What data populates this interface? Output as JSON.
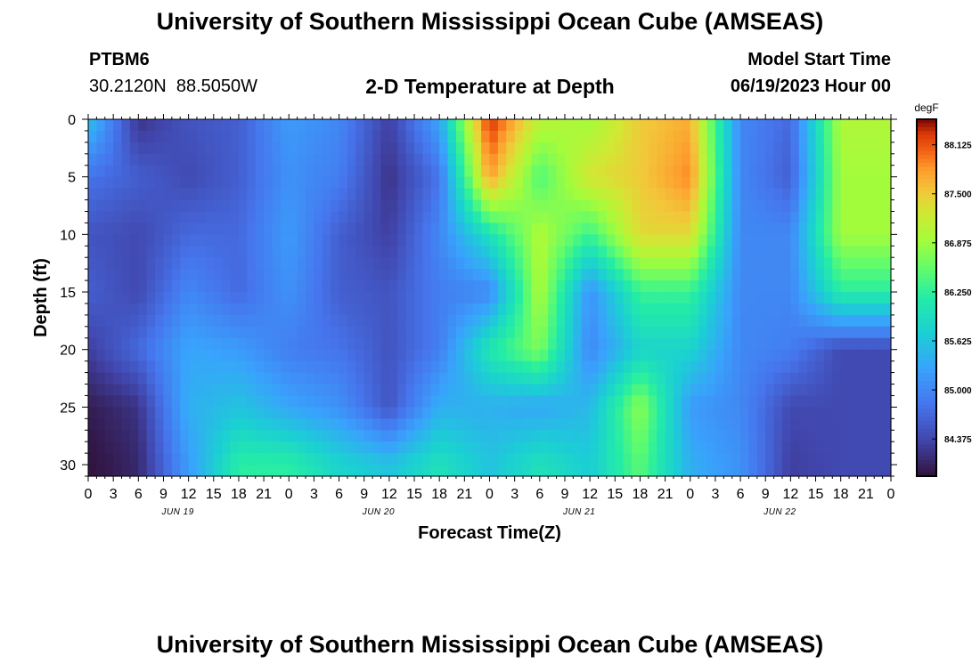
{
  "header": {
    "title": "University of Southern Mississippi Ocean Cube (AMSEAS)",
    "station": "PTBM6",
    "coords": "30.2120N  88.5050W",
    "subtitle": "2-D Temperature at Depth",
    "model_label": "Model Start Time",
    "model_time": "06/19/2023 Hour 00"
  },
  "footer": {
    "title_repeat": "University of Southern Mississippi Ocean Cube (AMSEAS)"
  },
  "chart_data": {
    "type": "heatmap",
    "title": "2-D Temperature at Depth",
    "xlabel": "Forecast Time(Z)",
    "ylabel": "Depth (ft)",
    "xlim": [
      0,
      96
    ],
    "ylim": [
      31,
      0
    ],
    "x_ticks": [
      "0",
      "3",
      "6",
      "9",
      "12",
      "15",
      "18",
      "21",
      "0",
      "3",
      "6",
      "9",
      "12",
      "15",
      "18",
      "21",
      "0",
      "3",
      "6",
      "9",
      "12",
      "15",
      "18",
      "21",
      "0",
      "3",
      "6",
      "9",
      "12",
      "15",
      "18",
      "21",
      "0"
    ],
    "day_labels": [
      "JUN 19",
      "JUN 20",
      "JUN 21",
      "JUN 22"
    ],
    "y_ticks": [
      0,
      5,
      10,
      15,
      20,
      25,
      30
    ],
    "colorbar": {
      "unit": "degF",
      "min": 83.9,
      "max": 88.45,
      "tick_labels": [
        "88.125",
        "87.500",
        "86.875",
        "86.250",
        "85.625",
        "85.000",
        "84.375"
      ],
      "tick_values": [
        88.125,
        87.5,
        86.875,
        86.25,
        85.625,
        85.0,
        84.375
      ]
    },
    "depths_ft": [
      0,
      5,
      10,
      15,
      20,
      25,
      30
    ],
    "times_h": [
      0,
      6,
      12,
      18,
      24,
      30,
      36,
      42,
      48,
      54,
      60,
      66,
      72,
      78,
      84,
      90,
      96
    ],
    "values_degF": [
      [
        85.6,
        84.2,
        84.5,
        84.6,
        85.2,
        85.0,
        84.3,
        85.3,
        88.3,
        87.1,
        86.9,
        87.5,
        87.7,
        85.0,
        84.7,
        87.0,
        87.0
      ],
      [
        84.8,
        84.6,
        84.4,
        84.6,
        85.1,
        84.9,
        84.2,
        84.8,
        87.8,
        86.4,
        87.3,
        87.5,
        87.9,
        85.0,
        84.6,
        86.9,
        86.9
      ],
      [
        84.5,
        84.4,
        84.7,
        84.7,
        85.2,
        84.6,
        84.3,
        85.0,
        86.0,
        87.0,
        86.3,
        87.4,
        87.4,
        85.0,
        85.0,
        86.9,
        86.9
      ],
      [
        84.6,
        84.4,
        85.0,
        84.7,
        85.1,
        84.6,
        84.5,
        84.9,
        85.0,
        87.0,
        85.1,
        86.3,
        86.3,
        85.0,
        85.0,
        86.2,
        86.2
      ],
      [
        84.3,
        84.7,
        85.3,
        85.2,
        84.9,
        84.8,
        84.5,
        84.9,
        86.1,
        86.7,
        85.0,
        85.8,
        85.8,
        85.0,
        84.9,
        84.4,
        84.4
      ],
      [
        84.0,
        84.2,
        85.4,
        85.6,
        85.3,
        85.1,
        84.5,
        85.4,
        85.4,
        85.3,
        85.5,
        86.8,
        85.2,
        85.0,
        84.4,
        84.4,
        84.4
      ],
      [
        83.9,
        84.1,
        85.2,
        86.2,
        86.2,
        85.8,
        85.6,
        86.0,
        85.6,
        86.0,
        85.7,
        86.5,
        85.4,
        85.1,
        84.3,
        84.4,
        84.4
      ]
    ]
  }
}
